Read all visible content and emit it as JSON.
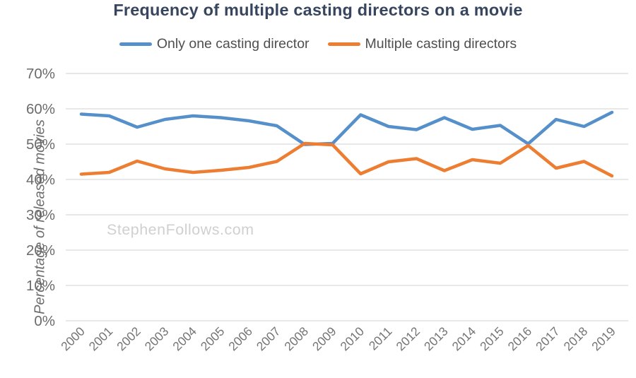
{
  "chart": {
    "title": "Frequency of multiple casting directors on a movie",
    "y_axis_label": "Percentage of released movies",
    "watermark": "StephenFollows.com"
  },
  "legend": [
    {
      "label": "Only one casting director",
      "color": "#5590cb"
    },
    {
      "label": "Multiple casting directors",
      "color": "#ed7d31"
    }
  ],
  "colors": {
    "series_blue": "#5590cb",
    "series_orange": "#ed7d31",
    "title_text": "#37465e",
    "legend_text": "#4f4f4f",
    "axis_text": "#6b6b6b",
    "gridline": "#d9d9d9",
    "watermark_text": "#d0d0d0"
  },
  "chart_data": {
    "type": "line",
    "title": "Frequency of multiple casting directors on a movie",
    "xlabel": "",
    "ylabel": "Percentage of released movies",
    "ylim": [
      0,
      70
    ],
    "ytick_step": 10,
    "yticks": [
      "0%",
      "10%",
      "20%",
      "30%",
      "40%",
      "50%",
      "60%",
      "70%"
    ],
    "grid": true,
    "legend_position": "top",
    "x": [
      2000,
      2001,
      2002,
      2003,
      2004,
      2005,
      2006,
      2007,
      2008,
      2009,
      2010,
      2011,
      2012,
      2013,
      2014,
      2015,
      2016,
      2017,
      2018,
      2019
    ],
    "series": [
      {
        "name": "Only one casting director",
        "color": "#5590cb",
        "values": [
          58.5,
          58.0,
          54.8,
          57.0,
          58.0,
          57.5,
          56.6,
          55.2,
          49.9,
          50.2,
          58.3,
          55.0,
          54.1,
          57.5,
          54.2,
          55.3,
          50.1,
          57.0,
          55.0,
          59.0
        ]
      },
      {
        "name": "Multiple casting directors",
        "color": "#ed7d31",
        "values": [
          41.5,
          42.0,
          45.2,
          43.0,
          42.0,
          42.6,
          43.4,
          45.1,
          50.2,
          49.8,
          41.6,
          45.0,
          45.9,
          42.5,
          45.6,
          44.6,
          49.6,
          43.2,
          45.1,
          41.0
        ]
      }
    ]
  }
}
